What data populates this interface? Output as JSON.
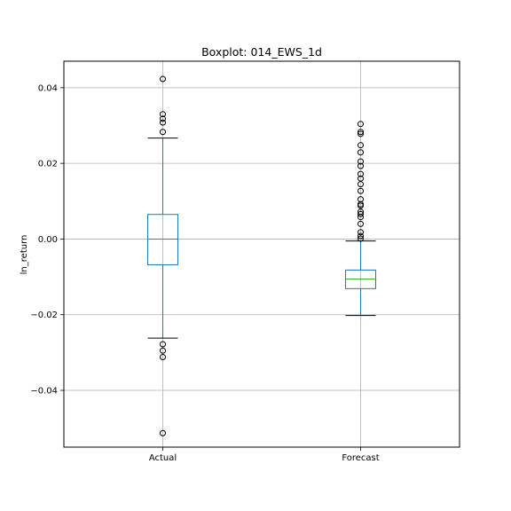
{
  "chart_data": {
    "type": "boxplot",
    "title": "Boxplot: 014_EWS_1d",
    "xlabel": "",
    "ylabel": "ln_return",
    "ylim": [
      -0.055,
      0.047
    ],
    "yticks": [
      -0.04,
      -0.02,
      0.0,
      0.02,
      0.04
    ],
    "ytick_labels": [
      "−0.04",
      "−0.02",
      "0.00",
      "0.02",
      "0.04"
    ],
    "grid": true,
    "colors": {
      "box": "#1f77b4",
      "median": "#2ca02c",
      "whisker": "#1f77b4",
      "cap": "#000000",
      "flier": "#000000",
      "grid": "#b0b0b0"
    },
    "categories": [
      "Actual",
      "Forecast"
    ],
    "boxes": [
      {
        "name": "Actual",
        "q1": -0.0068,
        "median": 0.0,
        "q3": 0.0065,
        "whisker_low": -0.0262,
        "whisker_high": 0.0267,
        "fliers": [
          0.0423,
          0.033,
          0.0318,
          0.0308,
          0.0283,
          -0.0278,
          -0.0295,
          -0.0312,
          -0.0513
        ]
      },
      {
        "name": "Forecast",
        "q1": -0.0131,
        "median": -0.0106,
        "q3": -0.0082,
        "whisker_low": -0.0202,
        "whisker_high": -0.0005,
        "fliers": [
          0.0304,
          0.0283,
          0.0278,
          0.0248,
          0.0229,
          0.0205,
          0.0193,
          0.0172,
          0.016,
          0.0145,
          0.0127,
          0.0105,
          0.0092,
          0.0088,
          0.0072,
          0.0066,
          0.0058,
          0.004,
          0.0018,
          0.0008,
          0.0001
        ]
      }
    ]
  }
}
